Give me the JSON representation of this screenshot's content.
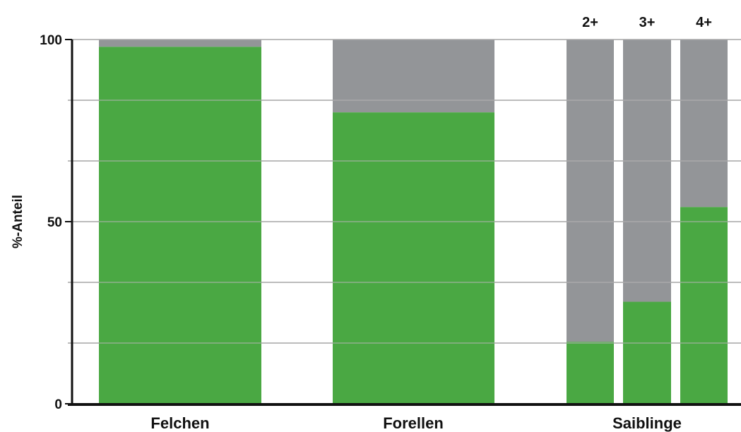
{
  "chart_data": {
    "type": "bar",
    "stacked": true,
    "title": "",
    "xlabel": "",
    "ylabel": "%-Anteil",
    "ylim": [
      0,
      100
    ],
    "yticks": [
      0,
      50,
      100
    ],
    "grid": true,
    "legend": "none",
    "colors": {
      "primary": "#4aa843",
      "remainder": "#939598"
    },
    "groups": [
      {
        "label": "Felchen",
        "bars": [
          {
            "label": "",
            "value": 98
          }
        ]
      },
      {
        "label": "Forellen",
        "bars": [
          {
            "label": "",
            "value": 80
          }
        ]
      },
      {
        "label": "Saiblinge",
        "bars": [
          {
            "label": "2+",
            "value": 17
          },
          {
            "label": "3+",
            "value": 28
          },
          {
            "label": "4+",
            "value": 54
          }
        ]
      }
    ]
  }
}
